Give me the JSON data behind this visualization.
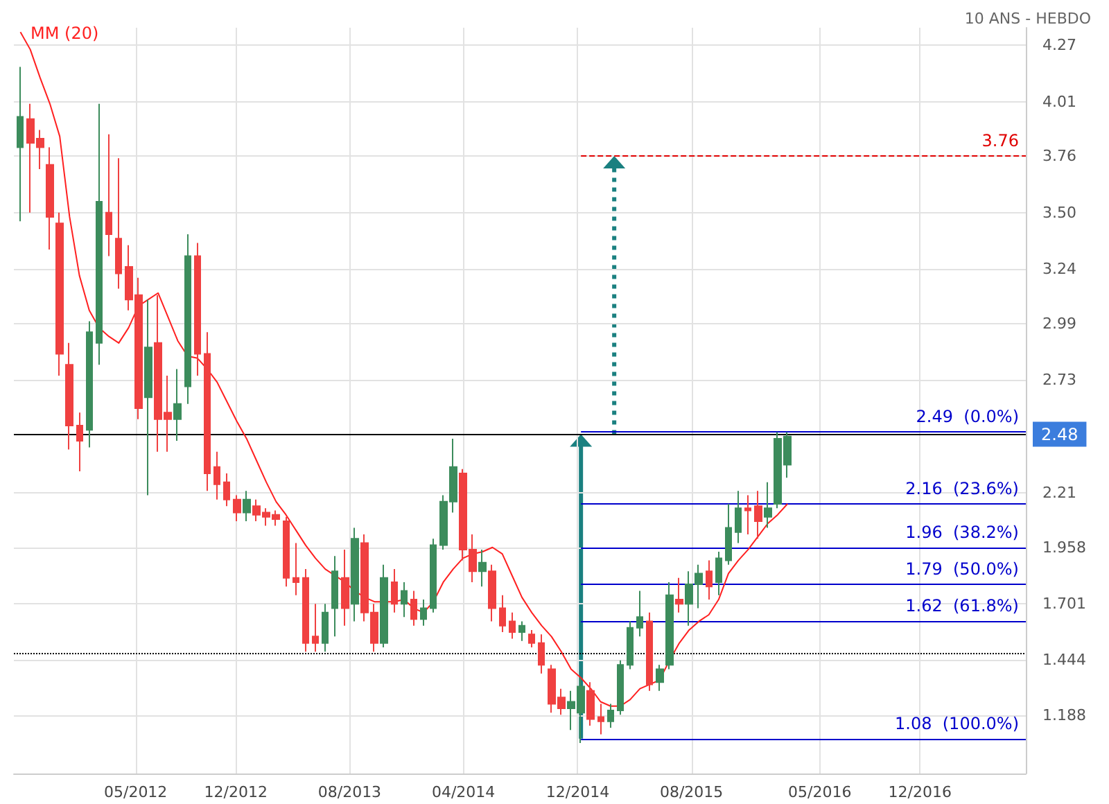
{
  "chart_data": {
    "type": "candlestick",
    "title": "10 ANS - HEBDO",
    "x": [
      "2011-08-29",
      "2011-09-19",
      "2011-10-10",
      "2011-10-31",
      "2011-11-21",
      "2011-12-12",
      "2012-01-02",
      "2012-01-23",
      "2012-02-13",
      "2012-03-05",
      "2012-03-26",
      "2012-04-16",
      "2012-05-07",
      "2012-05-28",
      "2012-06-18",
      "2012-07-09",
      "2012-07-30",
      "2012-08-20",
      "2012-09-10",
      "2012-10-01",
      "2012-10-22",
      "2012-11-12",
      "2012-12-03",
      "2012-12-24",
      "2013-01-14",
      "2013-02-04",
      "2013-02-25",
      "2013-03-18",
      "2013-04-08",
      "2013-04-29",
      "2013-05-20",
      "2013-06-10",
      "2013-07-01",
      "2013-07-22",
      "2013-08-12",
      "2013-09-02",
      "2013-09-23",
      "2013-10-14",
      "2013-11-04",
      "2013-11-25",
      "2013-12-16",
      "2014-01-06",
      "2014-01-27",
      "2014-02-17",
      "2014-03-10",
      "2014-03-31",
      "2014-04-21",
      "2014-05-12",
      "2014-06-02",
      "2014-06-23",
      "2014-07-14",
      "2014-08-04",
      "2014-08-25",
      "2014-09-15",
      "2014-10-06",
      "2014-10-27",
      "2014-11-17",
      "2014-12-08",
      "2014-12-29",
      "2015-01-19",
      "2015-02-09",
      "2015-03-02",
      "2015-03-23",
      "2015-04-13",
      "2015-05-04",
      "2015-05-25",
      "2015-06-15",
      "2015-07-06",
      "2015-07-27",
      "2015-08-17",
      "2015-09-07",
      "2015-09-28",
      "2015-10-19",
      "2015-11-09",
      "2015-11-30",
      "2015-12-21",
      "2016-01-11",
      "2016-02-01",
      "2016-02-22"
    ],
    "ohlc": [
      [
        3.8,
        4.17,
        3.46,
        3.94
      ],
      [
        3.93,
        4.0,
        3.5,
        3.82
      ],
      [
        3.84,
        3.88,
        3.7,
        3.8
      ],
      [
        3.72,
        3.8,
        3.33,
        3.48
      ],
      [
        3.45,
        3.5,
        2.75,
        2.85
      ],
      [
        2.8,
        2.9,
        2.41,
        2.52
      ],
      [
        2.52,
        2.58,
        2.31,
        2.45
      ],
      [
        2.5,
        3.0,
        2.42,
        2.95
      ],
      [
        2.9,
        4.0,
        2.8,
        3.55
      ],
      [
        3.5,
        3.86,
        3.3,
        3.4
      ],
      [
        3.38,
        3.75,
        3.15,
        3.22
      ],
      [
        3.25,
        3.35,
        3.05,
        3.1
      ],
      [
        3.12,
        3.2,
        2.55,
        2.6
      ],
      [
        2.65,
        3.1,
        2.2,
        2.88
      ],
      [
        2.9,
        3.12,
        2.4,
        2.55
      ],
      [
        2.58,
        2.75,
        2.4,
        2.55
      ],
      [
        2.55,
        2.78,
        2.45,
        2.62
      ],
      [
        2.7,
        3.4,
        2.62,
        3.3
      ],
      [
        3.3,
        3.36,
        2.75,
        2.85
      ],
      [
        2.85,
        2.95,
        2.22,
        2.3
      ],
      [
        2.33,
        2.4,
        2.18,
        2.25
      ],
      [
        2.26,
        2.3,
        2.15,
        2.18
      ],
      [
        2.18,
        2.2,
        2.08,
        2.12
      ],
      [
        2.12,
        2.22,
        2.08,
        2.18
      ],
      [
        2.15,
        2.18,
        2.08,
        2.11
      ],
      [
        2.12,
        2.14,
        2.06,
        2.1
      ],
      [
        2.11,
        2.13,
        2.06,
        2.09
      ],
      [
        2.08,
        2.1,
        1.78,
        1.82
      ],
      [
        1.82,
        1.98,
        1.74,
        1.8
      ],
      [
        1.82,
        1.86,
        1.48,
        1.52
      ],
      [
        1.55,
        1.7,
        1.48,
        1.52
      ],
      [
        1.52,
        1.7,
        1.48,
        1.66
      ],
      [
        1.68,
        1.92,
        1.55,
        1.85
      ],
      [
        1.82,
        1.95,
        1.6,
        1.68
      ],
      [
        1.7,
        2.05,
        1.62,
        2.0
      ],
      [
        1.98,
        2.02,
        1.62,
        1.66
      ],
      [
        1.66,
        1.7,
        1.48,
        1.52
      ],
      [
        1.52,
        1.88,
        1.5,
        1.82
      ],
      [
        1.8,
        1.86,
        1.66,
        1.7
      ],
      [
        1.7,
        1.8,
        1.64,
        1.76
      ],
      [
        1.72,
        1.76,
        1.6,
        1.63
      ],
      [
        1.63,
        1.72,
        1.6,
        1.68
      ],
      [
        1.68,
        2.0,
        1.66,
        1.97
      ],
      [
        1.97,
        2.2,
        1.95,
        2.17
      ],
      [
        2.17,
        2.46,
        2.12,
        2.33
      ],
      [
        2.3,
        2.32,
        1.9,
        1.95
      ],
      [
        1.95,
        2.02,
        1.8,
        1.85
      ],
      [
        1.85,
        1.95,
        1.78,
        1.89
      ],
      [
        1.85,
        1.88,
        1.62,
        1.68
      ],
      [
        1.68,
        1.74,
        1.57,
        1.6
      ],
      [
        1.62,
        1.66,
        1.54,
        1.57
      ],
      [
        1.57,
        1.62,
        1.53,
        1.6
      ],
      [
        1.56,
        1.58,
        1.5,
        1.52
      ],
      [
        1.52,
        1.56,
        1.38,
        1.42
      ],
      [
        1.4,
        1.42,
        1.2,
        1.24
      ],
      [
        1.27,
        1.31,
        1.19,
        1.22
      ],
      [
        1.22,
        1.3,
        1.12,
        1.25
      ],
      [
        1.2,
        1.36,
        1.06,
        1.32
      ],
      [
        1.3,
        1.34,
        1.14,
        1.17
      ],
      [
        1.18,
        1.24,
        1.1,
        1.16
      ],
      [
        1.16,
        1.24,
        1.13,
        1.21
      ],
      [
        1.21,
        1.44,
        1.19,
        1.42
      ],
      [
        1.42,
        1.62,
        1.4,
        1.59
      ],
      [
        1.59,
        1.76,
        1.55,
        1.64
      ],
      [
        1.62,
        1.66,
        1.3,
        1.33
      ],
      [
        1.34,
        1.42,
        1.3,
        1.4
      ],
      [
        1.42,
        1.8,
        1.4,
        1.74
      ],
      [
        1.72,
        1.82,
        1.66,
        1.7
      ],
      [
        1.7,
        1.85,
        1.6,
        1.79
      ],
      [
        1.79,
        1.88,
        1.68,
        1.84
      ],
      [
        1.85,
        1.9,
        1.72,
        1.78
      ],
      [
        1.8,
        1.94,
        1.74,
        1.91
      ],
      [
        1.9,
        2.16,
        1.88,
        2.05
      ],
      [
        2.03,
        2.22,
        1.98,
        2.14
      ],
      [
        2.14,
        2.2,
        2.02,
        2.13
      ],
      [
        2.15,
        2.22,
        2.0,
        2.08
      ],
      [
        2.1,
        2.26,
        2.05,
        2.14
      ],
      [
        2.16,
        2.49,
        2.14,
        2.46
      ],
      [
        2.34,
        2.49,
        2.28,
        2.47
      ]
    ],
    "series": [
      {
        "name": "MM (20)",
        "type": "line",
        "color": "#ff2020",
        "values": [
          4.33,
          4.25,
          4.12,
          4.0,
          3.85,
          3.48,
          3.21,
          3.05,
          2.97,
          2.93,
          2.9,
          2.97,
          3.07,
          3.1,
          3.13,
          3.02,
          2.91,
          2.84,
          2.83,
          2.78,
          2.72,
          2.63,
          2.54,
          2.46,
          2.36,
          2.26,
          2.17,
          2.11,
          2.04,
          1.97,
          1.91,
          1.86,
          1.83,
          1.8,
          1.76,
          1.73,
          1.71,
          1.71,
          1.71,
          1.72,
          1.68,
          1.66,
          1.71,
          1.8,
          1.86,
          1.91,
          1.93,
          1.94,
          1.96,
          1.93,
          1.83,
          1.73,
          1.66,
          1.6,
          1.55,
          1.48,
          1.4,
          1.36,
          1.31,
          1.25,
          1.23,
          1.23,
          1.26,
          1.31,
          1.33,
          1.35,
          1.44,
          1.52,
          1.58,
          1.62,
          1.65,
          1.72,
          1.84,
          1.9,
          1.95,
          2.01,
          2.07,
          2.11,
          2.16
        ]
      }
    ],
    "xlim": [
      "2011-08-15",
      "2017-07-15"
    ],
    "xticks": [
      {
        "value": "2012-05-01",
        "label": "05/2012"
      },
      {
        "value": "2012-12-01",
        "label": "12/2012"
      },
      {
        "value": "2013-08-01",
        "label": "08/2013"
      },
      {
        "value": "2014-04-01",
        "label": "04/2014"
      },
      {
        "value": "2014-12-01",
        "label": "12/2014"
      },
      {
        "value": "2015-08-01",
        "label": "08/2015"
      },
      {
        "value": "2016-05-01",
        "label": "05/2016"
      },
      {
        "value": "2016-12-01",
        "label": "12/2016"
      }
    ],
    "ylim": [
      0.92,
      4.35
    ],
    "yticks": [
      1.188,
      1.444,
      1.701,
      1.958,
      2.21,
      2.73,
      2.99,
      3.24,
      {
        "value": 3.5,
        "label": "3.50"
      },
      3.76,
      4.01,
      4.27
    ],
    "ref_lines": [
      {
        "axis": "y",
        "value": 2.48,
        "label": "2.48",
        "line_style": "solid"
      },
      {
        "axis": "y",
        "value": 1.47,
        "color": "#000000",
        "line_style": "dotted"
      },
      {
        "axis": "y",
        "value": 3.76,
        "label": "3.76",
        "color": "#e00000",
        "line_style": "dashed"
      },
      {
        "axis": "y",
        "value": 2.49,
        "label": "2.49  (0.0%)",
        "color": "#0000cc",
        "line_style": "solid"
      },
      {
        "axis": "y",
        "value": 2.16,
        "label": "2.16  (23.6%)",
        "color": "#0000cc",
        "line_style": "solid"
      },
      {
        "axis": "y",
        "value": 1.96,
        "label": "1.96  (38.2%)",
        "color": "#0000cc",
        "line_style": "solid"
      },
      {
        "axis": "y",
        "value": 1.79,
        "label": "1.79  (50.0%)",
        "color": "#0000cc",
        "line_style": "solid"
      },
      {
        "axis": "y",
        "value": 1.62,
        "label": "1.62  (61.8%)",
        "color": "#0000cc",
        "line_style": "solid"
      },
      {
        "axis": "y",
        "value": 1.08,
        "label": "1.08  (100.0%)",
        "color": "#0000cc",
        "line_style": "solid"
      }
    ],
    "grid": true,
    "legend": "top left",
    "marker": "none"
  }
}
